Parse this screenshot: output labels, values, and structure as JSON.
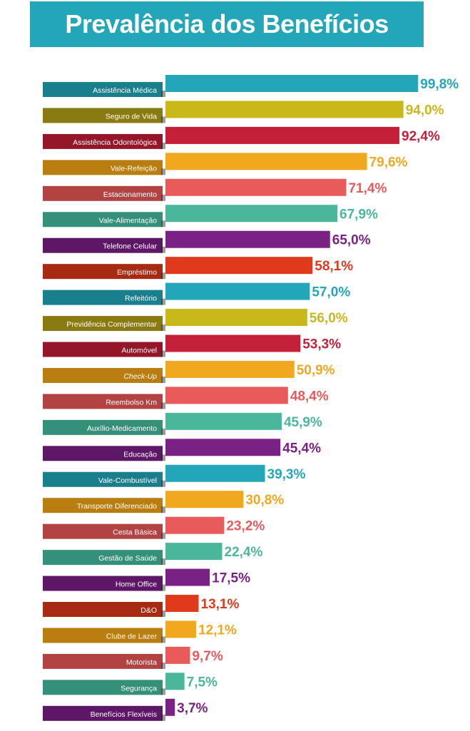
{
  "title": "Prevalência dos Benefícios",
  "colors": {
    "banner": "#23a7b8",
    "teal": "#23a7b8",
    "olive": "#c9b81a",
    "crimson": "#c4203a",
    "orange": "#f2a81e",
    "salmon": "#e95b5b",
    "green": "#4ab79b",
    "purple": "#7a2185",
    "red": "#df3a1c"
  },
  "chart_data": {
    "type": "bar",
    "orientation": "horizontal",
    "xlim": [
      0,
      100
    ],
    "categories": [
      "Assistência Médica",
      "Seguro de Vida",
      "Assistência Odontológica",
      "Vale-Refeição",
      "Estacionamento",
      "Vale-Alimentação",
      "Telefone Celular",
      "Empréstimo",
      "Refeitório",
      "Previdência Complementar",
      "Automóvel",
      "Check-Up",
      "Reembolso Km",
      "Auxílio-Medicamento",
      "Educação",
      "Vale-Combustível",
      "Transporte Diferenciado",
      "Cesta Básica",
      "Gestão de Saúde",
      "Home Office",
      "D&O",
      "Clube de Lazer",
      "Motorista",
      "Segurança",
      "Benefícios Flexíveis"
    ],
    "values": [
      99.8,
      94.0,
      92.4,
      79.6,
      71.4,
      67.9,
      65.0,
      58.1,
      57.0,
      56.0,
      53.3,
      50.9,
      48.4,
      45.9,
      45.4,
      39.3,
      30.8,
      23.2,
      22.4,
      17.5,
      13.1,
      12.1,
      9.7,
      7.5,
      3.7
    ],
    "value_labels": [
      "99,8%",
      "94,0%",
      "92,4%",
      "79,6%",
      "71,4%",
      "67,9%",
      "65,0%",
      "58,1%",
      "57,0%",
      "56,0%",
      "53,3%",
      "50,9%",
      "48,4%",
      "45,9%",
      "45,4%",
      "39,3%",
      "30,8%",
      "23,2%",
      "22,4%",
      "17,5%",
      "13,1%",
      "12,1%",
      "9,7%",
      "7,5%",
      "3,7%"
    ],
    "bar_colors": [
      "#23a7b8",
      "#c9b81a",
      "#c4203a",
      "#f2a81e",
      "#e95b5b",
      "#4ab79b",
      "#7a2185",
      "#df3a1c",
      "#23a7b8",
      "#c9b81a",
      "#c4203a",
      "#f2a81e",
      "#e95b5b",
      "#4ab79b",
      "#7a2185",
      "#23a7b8",
      "#f2a81e",
      "#e95b5b",
      "#4ab79b",
      "#7a2185",
      "#df3a1c",
      "#f2a81e",
      "#e95b5b",
      "#4ab79b",
      "#7a2185"
    ],
    "label_colors": [
      "#1a7f8c",
      "#8a7a12",
      "#961629",
      "#b97d10",
      "#b34242",
      "#35907a",
      "#5d1766",
      "#a82a12",
      "#1a7f8c",
      "#8a7a12",
      "#961629",
      "#b97d10",
      "#b34242",
      "#35907a",
      "#5d1766",
      "#1a7f8c",
      "#b97d10",
      "#b34242",
      "#35907a",
      "#5d1766",
      "#a82a12",
      "#b97d10",
      "#b34242",
      "#35907a",
      "#5d1766"
    ],
    "italic_categories": [
      "Check-Up"
    ]
  }
}
